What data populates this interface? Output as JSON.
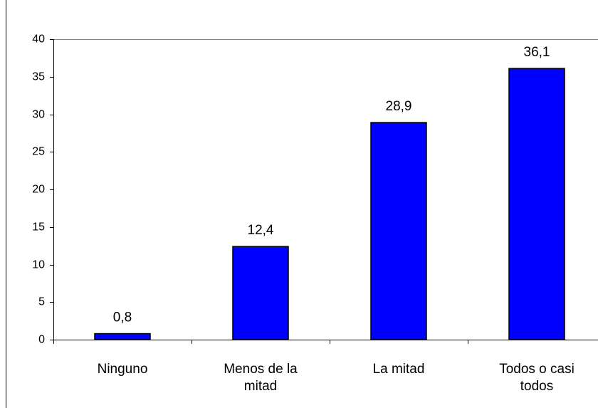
{
  "chart_data": {
    "type": "bar",
    "categories": [
      "Ninguno",
      "Menos de la mitad",
      "La mitad",
      "Todos o casi todos"
    ],
    "values": [
      0.8,
      12.4,
      28.9,
      36.1
    ],
    "value_labels": [
      "0,8",
      "12,4",
      "28,9",
      "36,1"
    ],
    "color": "#0000ff",
    "ylim": [
      0,
      40
    ],
    "yticks": [
      0,
      5,
      10,
      15,
      20,
      25,
      30,
      35,
      40
    ]
  }
}
